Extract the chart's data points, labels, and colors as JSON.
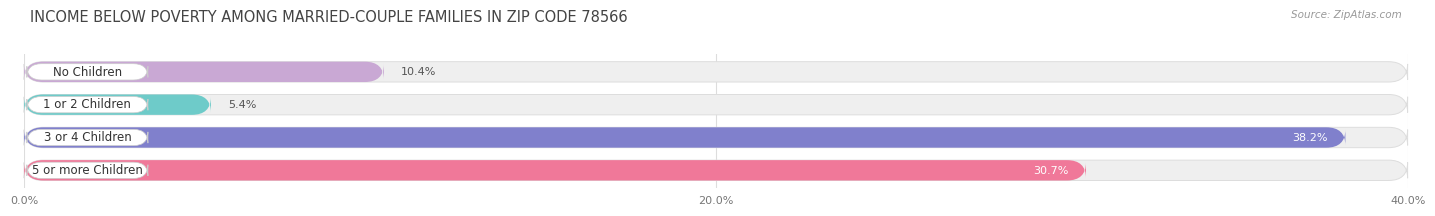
{
  "title": "INCOME BELOW POVERTY AMONG MARRIED-COUPLE FAMILIES IN ZIP CODE 78566",
  "source": "Source: ZipAtlas.com",
  "categories": [
    "No Children",
    "1 or 2 Children",
    "3 or 4 Children",
    "5 or more Children"
  ],
  "values": [
    10.4,
    5.4,
    38.2,
    30.7
  ],
  "bar_colors": [
    "#c9a8d4",
    "#6ecbc9",
    "#8080cc",
    "#f07899"
  ],
  "bg_bar_color": "#efefef",
  "bg_bar_edge": "#dddddd",
  "pill_color": "#ffffff",
  "pill_edge": "#cccccc",
  "xlim": [
    0,
    40
  ],
  "xticks": [
    0,
    20,
    40
  ],
  "xticklabels": [
    "0.0%",
    "20.0%",
    "40.0%"
  ],
  "title_fontsize": 10.5,
  "source_fontsize": 7.5,
  "label_fontsize": 8.5,
  "value_fontsize": 8,
  "tick_fontsize": 8,
  "background_color": "#ffffff",
  "bar_height": 0.62,
  "value_inside_threshold": 15
}
